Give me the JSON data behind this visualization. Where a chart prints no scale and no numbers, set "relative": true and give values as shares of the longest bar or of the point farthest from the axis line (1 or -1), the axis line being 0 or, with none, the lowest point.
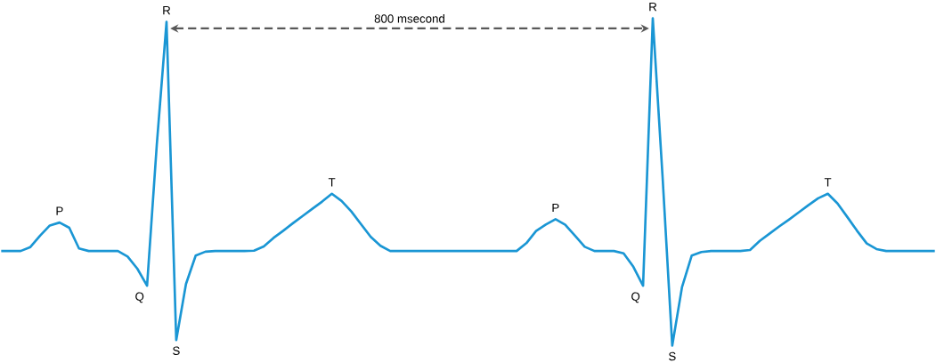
{
  "chart_data": {
    "type": "line",
    "relative": true,
    "color": "#1a96d4",
    "marker": "none",
    "line_style": "solid",
    "categories": [
      null,
      null,
      null,
      null,
      null,
      null,
      null,
      null,
      null,
      null,
      null,
      null,
      null,
      null,
      null,
      null,
      null,
      null,
      null,
      null,
      null,
      null,
      null,
      null,
      null,
      null,
      null,
      null,
      null,
      null,
      null,
      null,
      null,
      null,
      null,
      null,
      null,
      null,
      null,
      null,
      null,
      null,
      null,
      null,
      null,
      null,
      null,
      null,
      null,
      null,
      null,
      null,
      null,
      null,
      null,
      null,
      null,
      null,
      null,
      null,
      null,
      null,
      null,
      null,
      null,
      null,
      null,
      null,
      null,
      null,
      null,
      null,
      null,
      null,
      null,
      null,
      null,
      null,
      null,
      null,
      null,
      null,
      null,
      null,
      null,
      null,
      null,
      null,
      null,
      null,
      null,
      null,
      null,
      null,
      null,
      null,
      null
    ],
    "values": [
      0.289,
      0.289,
      0.289,
      0.301,
      0.336,
      0.367,
      0.376,
      0.36,
      0.297,
      0.289,
      0.289,
      0.289,
      0.289,
      0.272,
      0.235,
      0.183,
      0.614,
      0.989,
      0.017,
      0.188,
      0.275,
      0.287,
      0.289,
      0.289,
      0.289,
      0.289,
      0.29,
      0.303,
      0.329,
      0.351,
      0.374,
      0.396,
      0.418,
      0.44,
      0.464,
      0.442,
      0.41,
      0.371,
      0.332,
      0.305,
      0.289,
      0.289,
      0.289,
      0.289,
      0.289,
      0.289,
      0.289,
      0.289,
      0.289,
      0.289,
      0.289,
      0.289,
      0.289,
      0.289,
      0.313,
      0.35,
      0.37,
      0.386,
      0.369,
      0.336,
      0.302,
      0.289,
      0.289,
      0.289,
      0.282,
      0.241,
      0.183,
      1,
      0.519,
      0,
      0.178,
      0.275,
      0.286,
      0.289,
      0.289,
      0.289,
      0.289,
      0.292,
      0.32,
      0.342,
      0.364,
      0.385,
      0.407,
      0.429,
      0.45,
      0.464,
      0.434,
      0.393,
      0.351,
      0.312,
      0.295,
      0.289,
      0.289,
      0.289,
      0.289,
      0.289,
      0.289
    ],
    "annotations": [
      "P",
      "Q",
      "R",
      "S",
      "T",
      "P",
      "Q",
      "R",
      "S",
      "T",
      "800 msecond"
    ]
  }
}
